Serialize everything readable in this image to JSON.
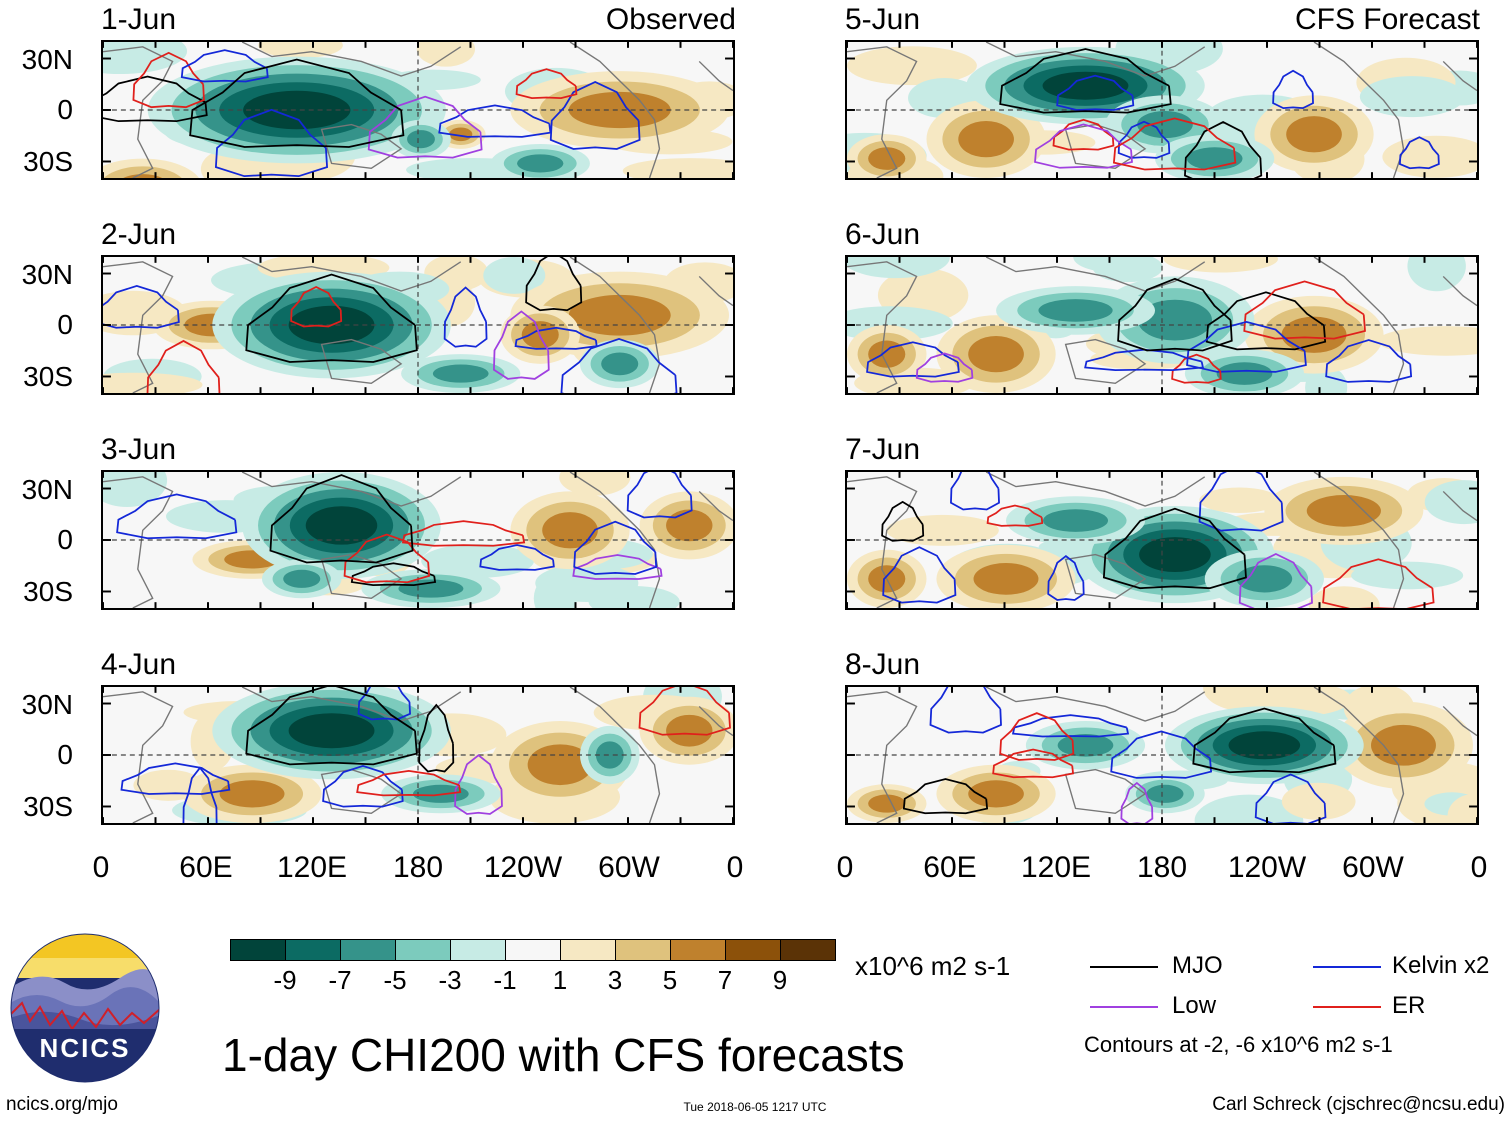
{
  "panels": [
    {
      "label": "1-Jun",
      "corner": "Observed"
    },
    {
      "label": "2-Jun",
      "corner": ""
    },
    {
      "label": "3-Jun",
      "corner": ""
    },
    {
      "label": "4-Jun",
      "corner": ""
    },
    {
      "label": "5-Jun",
      "corner": "CFS Forecast"
    },
    {
      "label": "6-Jun",
      "corner": ""
    },
    {
      "label": "7-Jun",
      "corner": ""
    },
    {
      "label": "8-Jun",
      "corner": ""
    }
  ],
  "lat_labels": [
    "30N",
    "0",
    "30S"
  ],
  "lon_labels": [
    "0",
    "60E",
    "120E",
    "180",
    "120W",
    "60W",
    "0"
  ],
  "colorbar": {
    "colors": [
      "#01443a",
      "#0c6b63",
      "#35938a",
      "#7ccbbd",
      "#c7ebe5",
      "#f7f7f7",
      "#f6e8c3",
      "#dfc27d",
      "#bf812d",
      "#8c510a",
      "#5b3306"
    ],
    "labels": [
      "-9",
      "-7",
      "-5",
      "-3",
      "-1",
      "1",
      "3",
      "5",
      "7",
      "9"
    ],
    "units": "x10^6 m2 s-1"
  },
  "legend": {
    "items": [
      {
        "label": "MJO",
        "color": "#000000"
      },
      {
        "label": "Kelvin x2",
        "color": "#1428d8"
      },
      {
        "label": "Low",
        "color": "#a040e0"
      },
      {
        "label": "ER",
        "color": "#e0201c"
      }
    ],
    "note": "Contours at -2, -6 x10^6 m2 s-1"
  },
  "title": "1-day CHI200 with CFS forecasts",
  "logo_text": "NCICS",
  "footer": {
    "left": "ncics.org/mjo",
    "center": "Tue 2018-06-05 1217 UTC",
    "right": "Carl Schreck (cjschrec@ncsu.edu)"
  }
}
